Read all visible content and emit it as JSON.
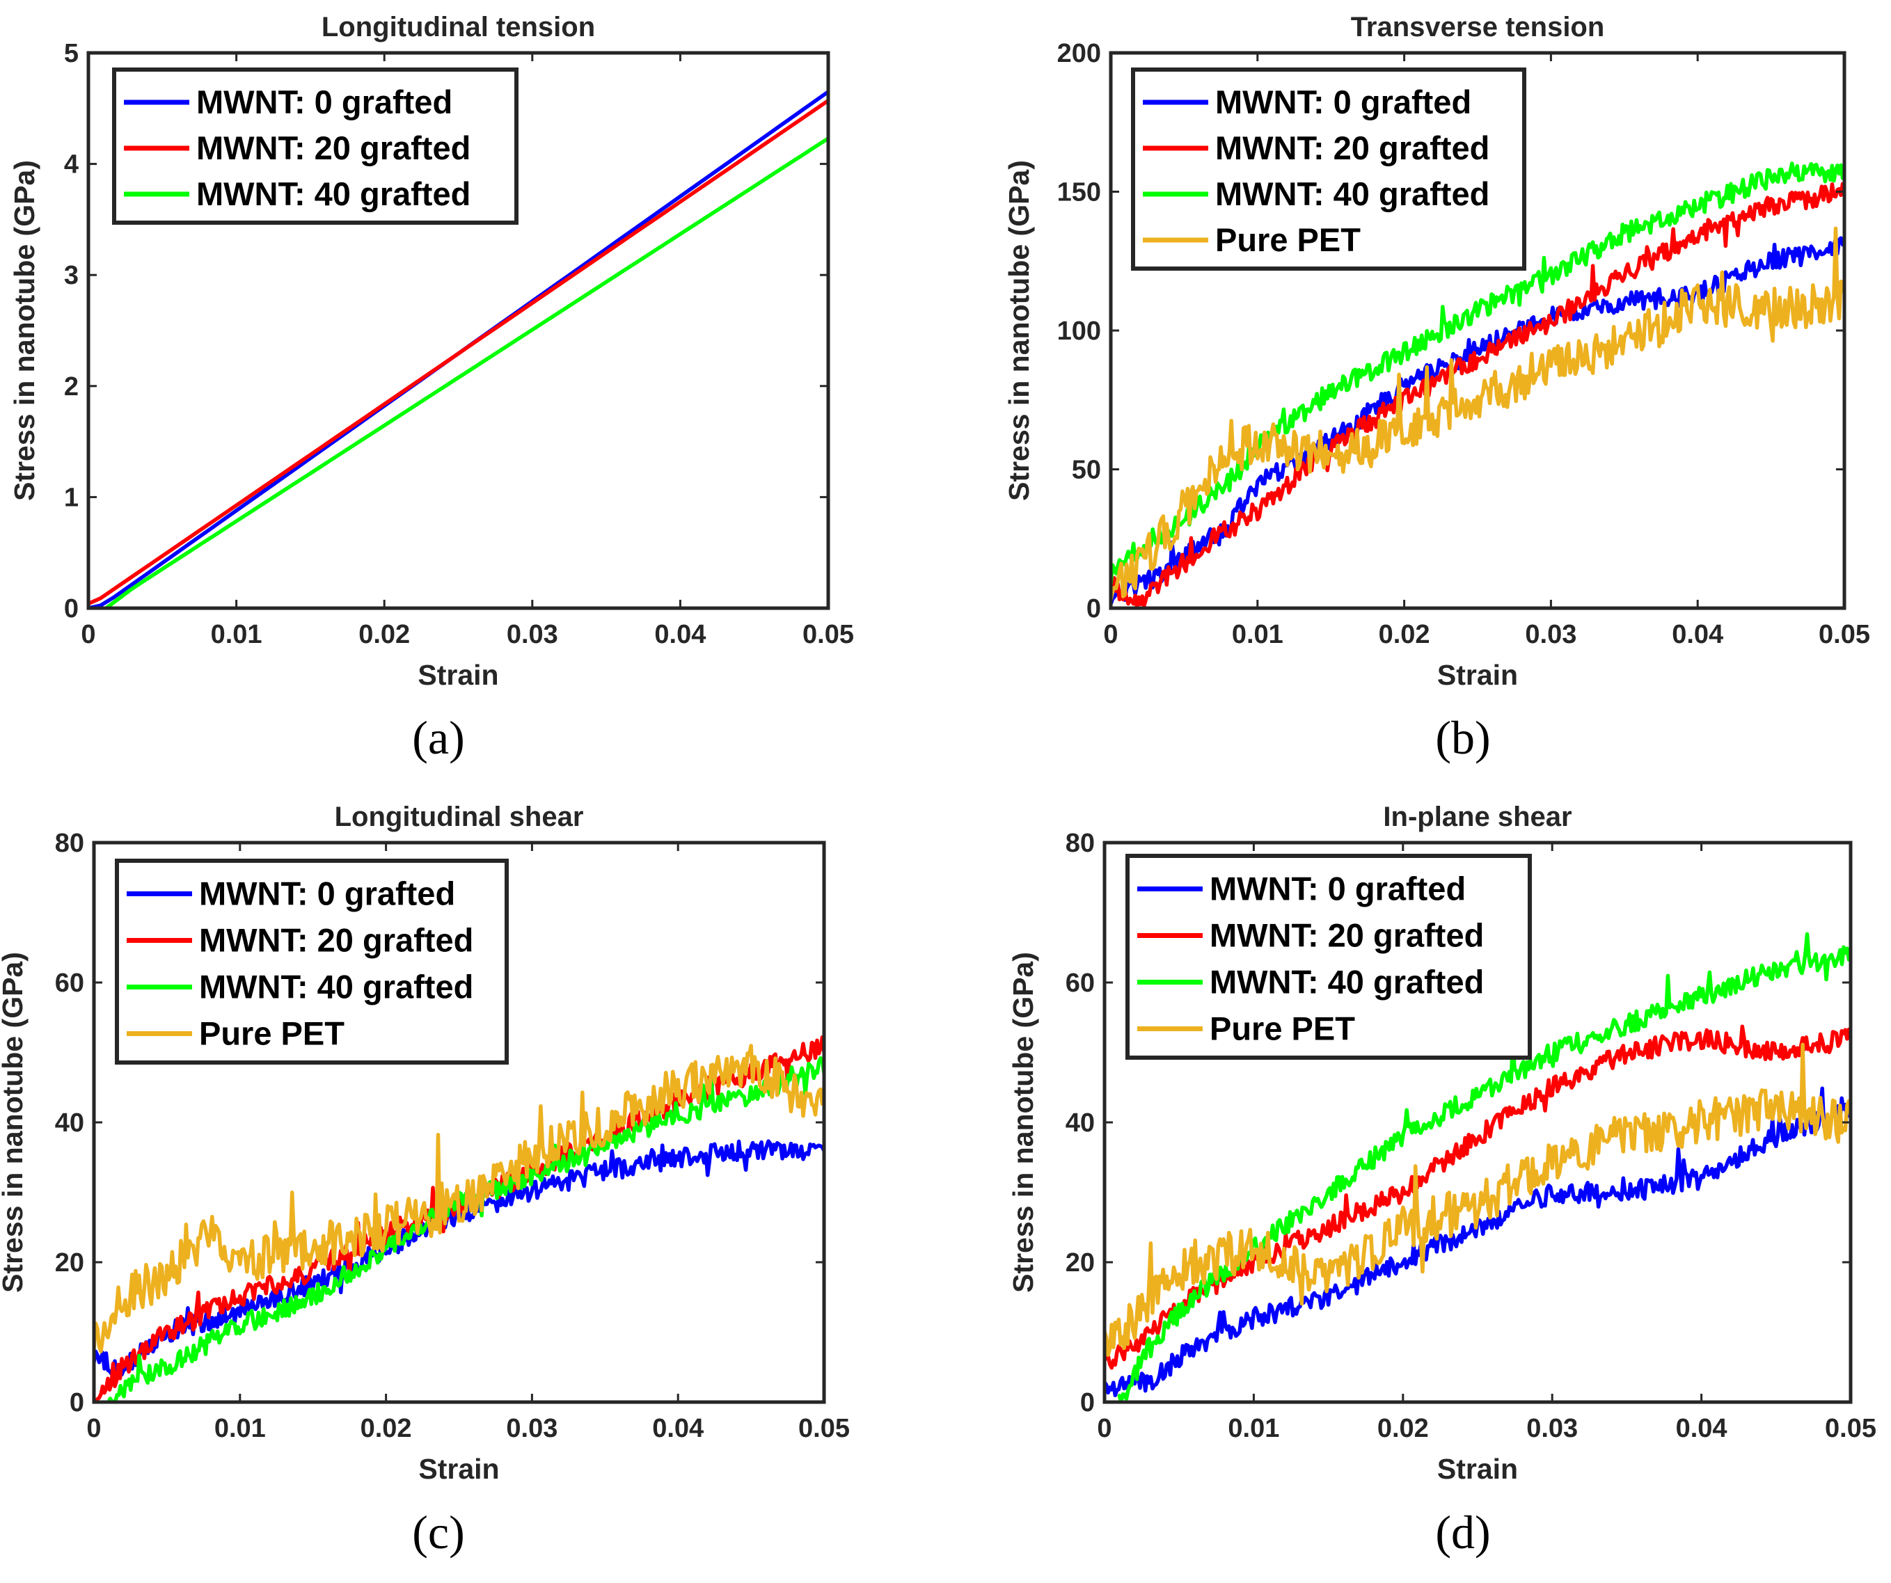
{
  "colors": {
    "MWNT: 0 grafted": "#0000ff",
    "MWNT: 20 grafted": "#ff0000",
    "MWNT: 40 grafted": "#00ff00",
    "Pure PET": "#edb120"
  },
  "chart_data": [
    {
      "id": "a",
      "panel_label": "(a)",
      "type": "line",
      "title": "Longitudinal tension",
      "xlabel": "Strain",
      "ylabel": "Stress in nanotube (GPa)",
      "xlim": [
        0,
        0.05
      ],
      "ylim": [
        0,
        5
      ],
      "xticks": [
        0,
        0.01,
        0.02,
        0.03,
        0.04,
        0.05
      ],
      "xtick_labels": [
        "0",
        "0.01",
        "0.02",
        "0.03",
        "0.04",
        "0.05"
      ],
      "yticks": [
        0,
        1,
        2,
        3,
        4,
        5
      ],
      "ytick_labels": [
        "0",
        "1",
        "2",
        "3",
        "4",
        "5"
      ],
      "legend": [
        "MWNT: 0 grafted",
        "MWNT: 20 grafted",
        "MWNT: 40 grafted"
      ],
      "series": [
        {
          "name": "MWNT: 0 grafted",
          "x": [
            0,
            0.001,
            0.05
          ],
          "y": [
            0,
            0.03,
            4.65
          ]
        },
        {
          "name": "MWNT: 20 grafted",
          "x": [
            0,
            0.0005,
            0.05
          ],
          "y": [
            0.04,
            0.06,
            4.57
          ]
        },
        {
          "name": "MWNT: 40 grafted",
          "x": [
            0.0012,
            0.003,
            0.05
          ],
          "y": [
            0,
            0.18,
            4.23
          ]
        }
      ]
    },
    {
      "id": "b",
      "panel_label": "(b)",
      "type": "line",
      "title": "Transverse tension",
      "xlabel": "Strain",
      "ylabel": "Stress in nanotube (GPa)",
      "xlim": [
        0,
        0.05
      ],
      "ylim": [
        0,
        200
      ],
      "xticks": [
        0,
        0.01,
        0.02,
        0.03,
        0.04,
        0.05
      ],
      "xtick_labels": [
        "0",
        "0.01",
        "0.02",
        "0.03",
        "0.04",
        "0.05"
      ],
      "yticks": [
        0,
        50,
        100,
        150,
        200
      ],
      "ytick_labels": [
        "0",
        "50",
        "100",
        "150",
        "200"
      ],
      "legend": [
        "MWNT: 0 grafted",
        "MWNT: 20 grafted",
        "MWNT: 40 grafted",
        "Pure PET"
      ],
      "series": [
        {
          "name": "MWNT: 0 grafted",
          "x": [
            0,
            0.002,
            0.005,
            0.008,
            0.01,
            0.015,
            0.02,
            0.025,
            0.03,
            0.035,
            0.04,
            0.045,
            0.05
          ],
          "y": [
            5,
            8,
            18,
            30,
            45,
            60,
            80,
            93,
            105,
            110,
            113,
            125,
            130
          ]
        },
        {
          "name": "MWNT: 20 grafted",
          "x": [
            0,
            0.002,
            0.004,
            0.007,
            0.01,
            0.015,
            0.02,
            0.025,
            0.03,
            0.035,
            0.04,
            0.045,
            0.05
          ],
          "y": [
            8,
            3,
            12,
            25,
            35,
            58,
            75,
            90,
            103,
            120,
            135,
            145,
            150
          ]
        },
        {
          "name": "MWNT: 40 grafted",
          "x": [
            0,
            0.002,
            0.005,
            0.008,
            0.01,
            0.015,
            0.02,
            0.025,
            0.03,
            0.035,
            0.04,
            0.045,
            0.05
          ],
          "y": [
            12,
            22,
            32,
            45,
            58,
            78,
            92,
            107,
            120,
            135,
            145,
            155,
            158
          ]
        },
        {
          "name": "Pure PET",
          "x": [
            0,
            0.002,
            0.005,
            0.008,
            0.01,
            0.015,
            0.02,
            0.025,
            0.03,
            0.035,
            0.04,
            0.045,
            0.05
          ],
          "y": [
            10,
            15,
            35,
            55,
            60,
            55,
            62,
            75,
            88,
            95,
            110,
            108,
            110
          ]
        }
      ]
    },
    {
      "id": "c",
      "panel_label": "(c)",
      "type": "line",
      "title": "Longitudinal shear",
      "xlabel": "Strain",
      "ylabel": "Stress in nanotube (GPa)",
      "xlim": [
        0,
        0.05
      ],
      "ylim": [
        0,
        80
      ],
      "xticks": [
        0,
        0.01,
        0.02,
        0.03,
        0.04,
        0.05
      ],
      "xtick_labels": [
        "0",
        "0.01",
        "0.02",
        "0.03",
        "0.04",
        "0.05"
      ],
      "yticks": [
        0,
        20,
        40,
        60,
        80
      ],
      "ytick_labels": [
        "0",
        "20",
        "40",
        "60",
        "80"
      ],
      "legend": [
        "MWNT: 0 grafted",
        "MWNT: 20 grafted",
        "MWNT: 40 grafted",
        "Pure PET"
      ],
      "series": [
        {
          "name": "MWNT: 0 grafted",
          "x": [
            0,
            0.002,
            0.005,
            0.01,
            0.015,
            0.02,
            0.025,
            0.03,
            0.035,
            0.04,
            0.045,
            0.05
          ],
          "y": [
            6,
            5,
            10,
            13,
            17,
            22,
            27,
            30,
            33,
            35,
            36,
            36
          ]
        },
        {
          "name": "MWNT: 20 grafted",
          "x": [
            0,
            0.002,
            0.005,
            0.01,
            0.015,
            0.02,
            0.025,
            0.03,
            0.035,
            0.04,
            0.045,
            0.05
          ],
          "y": [
            0,
            5,
            10,
            15,
            19,
            24,
            28,
            33,
            38,
            43,
            47,
            51
          ]
        },
        {
          "name": "MWNT: 40 grafted",
          "x": [
            0.001,
            0.003,
            0.005,
            0.01,
            0.015,
            0.02,
            0.025,
            0.03,
            0.035,
            0.04,
            0.045,
            0.05
          ],
          "y": [
            0,
            3,
            5,
            11,
            15,
            22,
            29,
            32,
            37,
            41,
            44,
            48
          ]
        },
        {
          "name": "Pure PET",
          "x": [
            0,
            0.002,
            0.005,
            0.008,
            0.01,
            0.015,
            0.02,
            0.025,
            0.03,
            0.035,
            0.04,
            0.045,
            0.05
          ],
          "y": [
            8,
            15,
            18,
            25,
            20,
            22,
            25,
            28,
            35,
            40,
            45,
            48,
            42
          ]
        }
      ]
    },
    {
      "id": "d",
      "panel_label": "(d)",
      "type": "line",
      "title": "In-plane shear",
      "xlabel": "Strain",
      "ylabel": "Stress in nanotube (GPa)",
      "xlim": [
        0,
        0.05
      ],
      "ylim": [
        0,
        80
      ],
      "xticks": [
        0,
        0.01,
        0.02,
        0.03,
        0.04,
        0.05
      ],
      "xtick_labels": [
        "0",
        "0.01",
        "0.02",
        "0.03",
        "0.04",
        "0.05"
      ],
      "yticks": [
        0,
        20,
        40,
        60,
        80
      ],
      "ytick_labels": [
        "0",
        "20",
        "40",
        "60",
        "80"
      ],
      "legend": [
        "MWNT: 0 grafted",
        "MWNT: 20 grafted",
        "MWNT: 40 grafted",
        "Pure PET"
      ],
      "series": [
        {
          "name": "MWNT: 0 grafted",
          "x": [
            0,
            0.003,
            0.006,
            0.01,
            0.015,
            0.02,
            0.025,
            0.03,
            0.035,
            0.04,
            0.045,
            0.05
          ],
          "y": [
            2,
            3,
            8,
            12,
            15,
            20,
            25,
            30,
            30,
            32,
            38,
            42
          ]
        },
        {
          "name": "MWNT: 20 grafted",
          "x": [
            0,
            0.003,
            0.006,
            0.01,
            0.015,
            0.02,
            0.025,
            0.03,
            0.035,
            0.04,
            0.045,
            0.05
          ],
          "y": [
            5,
            10,
            15,
            20,
            25,
            30,
            38,
            45,
            50,
            52,
            50,
            52
          ]
        },
        {
          "name": "MWNT: 40 grafted",
          "x": [
            0.001,
            0.003,
            0.006,
            0.01,
            0.015,
            0.02,
            0.025,
            0.03,
            0.035,
            0.04,
            0.045,
            0.05
          ],
          "y": [
            0,
            8,
            15,
            22,
            30,
            38,
            44,
            50,
            54,
            58,
            62,
            64
          ]
        },
        {
          "name": "Pure PET",
          "x": [
            0,
            0.003,
            0.006,
            0.01,
            0.015,
            0.02,
            0.025,
            0.03,
            0.035,
            0.04,
            0.045,
            0.05
          ],
          "y": [
            8,
            14,
            20,
            22,
            18,
            25,
            28,
            35,
            38,
            40,
            42,
            40
          ]
        }
      ]
    }
  ]
}
